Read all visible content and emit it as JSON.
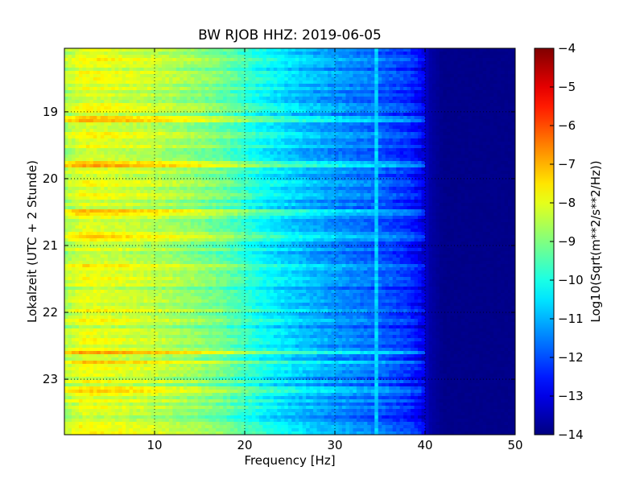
{
  "chart_data": {
    "type": "heatmap",
    "title": "BW RJOB HHZ: 2019-06-05",
    "xlabel": "Frequency [Hz]",
    "ylabel": "Lokalzeit (UTC + 2 Stunde)",
    "xlim": [
      0,
      50
    ],
    "ylim_hours": [
      18.05,
      23.83
    ],
    "x_ticks": [
      10,
      20,
      30,
      40,
      50
    ],
    "x_tick_labels": [
      "10",
      "20",
      "30",
      "40",
      "50"
    ],
    "y_ticks": [
      19,
      20,
      21,
      22,
      23
    ],
    "y_tick_labels": [
      "19",
      "20",
      "21",
      "22",
      "23"
    ],
    "grid": true,
    "colormap": "jet",
    "colorbar": {
      "label": "Log10(Sqrt(m**2/s**2/Hz))",
      "range": [
        -14,
        -4
      ],
      "ticks": [
        -4,
        -5,
        -6,
        -7,
        -8,
        -9,
        -10,
        -11,
        -12,
        -13,
        -14
      ],
      "tick_labels": [
        "−4",
        "−5",
        "−6",
        "−7",
        "−8",
        "−9",
        "−10",
        "−11",
        "−12",
        "−13",
        "−14"
      ]
    },
    "spectral_profile": {
      "frequency_hz": [
        0,
        2,
        5,
        10,
        15,
        18,
        22,
        26,
        30,
        34,
        36,
        38,
        39.5,
        40.5,
        42,
        50
      ],
      "log10_amplitude": [
        -8.6,
        -8.0,
        -8.1,
        -8.4,
        -8.9,
        -9.3,
        -10.2,
        -10.8,
        -11.3,
        -11.7,
        -12.0,
        -12.3,
        -12.8,
        -13.6,
        -13.9,
        -13.9
      ]
    },
    "persistent_line": {
      "frequency_hz": 34.5,
      "log10_amplitude": -10.7
    },
    "noisy_time_bands_hours": [
      19.1,
      19.8,
      20.5,
      20.9,
      21.3,
      22.6,
      22.75,
      23.15
    ]
  }
}
